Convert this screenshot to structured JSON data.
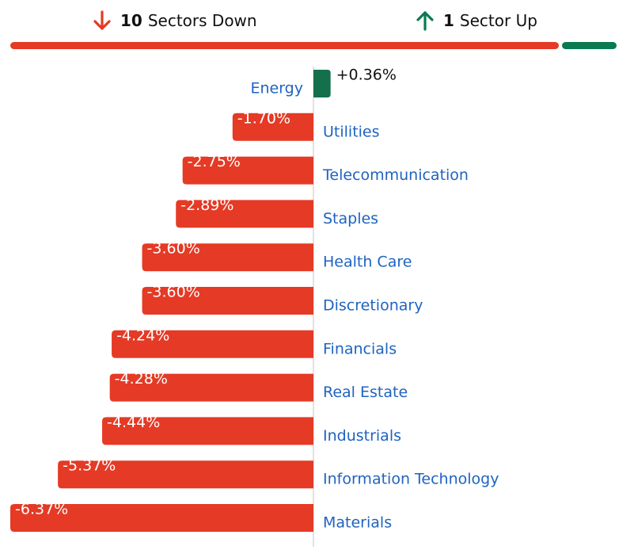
{
  "summary": {
    "down": {
      "count": "10",
      "text": "Sectors Down",
      "color": "#e53a25"
    },
    "up": {
      "count": "1",
      "text": "Sector Up",
      "color": "#0a7a50"
    }
  },
  "colors": {
    "negative": "#e53a25",
    "positive": "#13704a",
    "label": "#1f63c0",
    "axis": "#d9d9d9"
  },
  "chart_data": {
    "type": "bar",
    "orientation": "horizontal",
    "title": "",
    "xlabel": "",
    "ylabel": "",
    "grid": false,
    "legend": "none",
    "categories": [
      "Energy",
      "Utilities",
      "Telecommunication",
      "Staples",
      "Health Care",
      "Discretionary",
      "Financials",
      "Real Estate",
      "Industrials",
      "Information Technology",
      "Materials"
    ],
    "values": [
      0.36,
      -1.7,
      -2.75,
      -2.89,
      -3.6,
      -3.6,
      -4.24,
      -4.28,
      -4.44,
      -5.37,
      -6.37
    ],
    "value_labels": [
      "+0.36%",
      "-1.70%",
      "-2.75%",
      "-2.89%",
      "-3.60%",
      "-3.60%",
      "-4.24%",
      "-4.28%",
      "-4.44%",
      "-5.37%",
      "-6.37%"
    ],
    "xlim": [
      -6.37,
      0.36
    ]
  }
}
